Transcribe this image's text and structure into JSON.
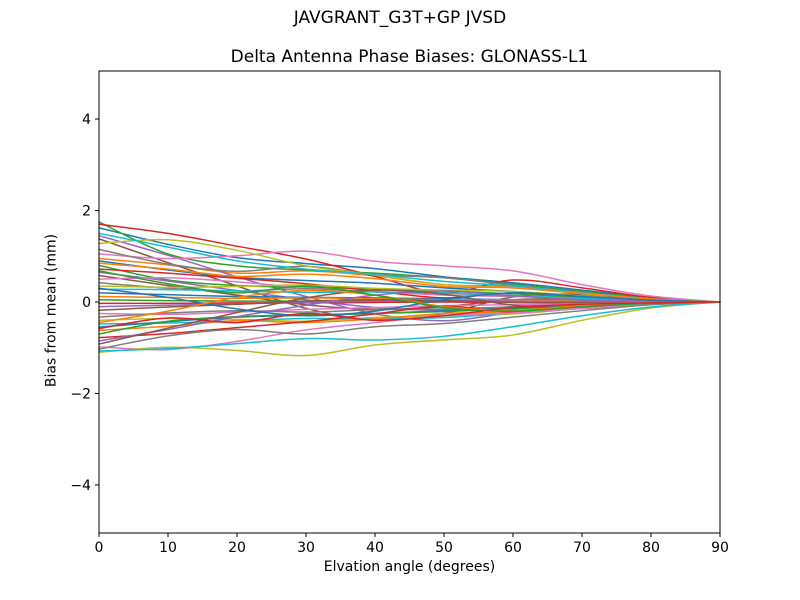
{
  "chart_data": {
    "type": "line",
    "suptitle": "JAVGRANT_G3T+GP JVSD",
    "title": "Delta Antenna Phase Biases: GLONASS-L1",
    "xlabel": "Elvation angle (degrees)",
    "ylabel": "Bias from mean (mm)",
    "xlim": [
      0,
      90
    ],
    "ylim": [
      -5.05,
      5.05
    ],
    "xticks": [
      0,
      10,
      20,
      30,
      40,
      50,
      60,
      70,
      80,
      90
    ],
    "xtick_labels": [
      "0",
      "10",
      "20",
      "30",
      "40",
      "50",
      "60",
      "70",
      "80",
      "90"
    ],
    "yticks": [
      -4,
      -2,
      0,
      2,
      4
    ],
    "ytick_labels": [
      "−4",
      "−2",
      "0",
      "2",
      "4"
    ],
    "grid": false,
    "legend_position": "none",
    "axis_color": "#000000",
    "x": [
      0,
      10,
      20,
      30,
      40,
      50,
      60,
      70,
      80,
      90
    ],
    "series": [
      {
        "color": "#1f77b4",
        "values": [
          1.62,
          1.26,
          0.97,
          0.84,
          0.73,
          0.55,
          0.42,
          0.26,
          0.1,
          0
        ]
      },
      {
        "color": "#ff7f0e",
        "values": [
          0.95,
          0.81,
          0.63,
          0.68,
          0.57,
          0.38,
          0.34,
          0.21,
          0.08,
          0
        ]
      },
      {
        "color": "#2ca02c",
        "values": [
          1.75,
          1.05,
          0.79,
          0.7,
          0.63,
          0.53,
          0.39,
          0.23,
          0.09,
          0
        ]
      },
      {
        "color": "#d62728",
        "values": [
          1.7,
          1.5,
          1.22,
          0.94,
          0.56,
          0.2,
          0.48,
          0.31,
          0.1,
          0
        ]
      },
      {
        "color": "#9467bd",
        "values": [
          1.45,
          1.02,
          0.55,
          0.12,
          -0.26,
          -0.41,
          -0.23,
          -0.09,
          -0.03,
          0
        ]
      },
      {
        "color": "#8c564b",
        "values": [
          1.38,
          0.86,
          0.35,
          -0.14,
          -0.39,
          -0.25,
          0.11,
          0.17,
          0.07,
          0
        ]
      },
      {
        "color": "#e377c2",
        "values": [
          1.05,
          0.95,
          1.01,
          1.11,
          0.89,
          0.79,
          0.68,
          0.38,
          0.13,
          0
        ]
      },
      {
        "color": "#7f7f7f",
        "values": [
          1.15,
          0.83,
          0.67,
          0.78,
          0.6,
          0.53,
          0.37,
          0.21,
          0.07,
          0
        ]
      },
      {
        "color": "#bcbd22",
        "values": [
          1.28,
          1.36,
          1.13,
          0.79,
          0.59,
          0.38,
          0.31,
          0.18,
          0.06,
          0
        ]
      },
      {
        "color": "#17becf",
        "values": [
          1.5,
          1.2,
          0.9,
          0.72,
          0.6,
          0.45,
          0.35,
          0.2,
          0.07,
          0
        ]
      },
      {
        "color": "#1f77b4",
        "values": [
          0.9,
          0.7,
          0.54,
          0.47,
          0.41,
          0.31,
          0.23,
          0.14,
          0.05,
          0
        ]
      },
      {
        "color": "#ff7f0e",
        "values": [
          0.85,
          0.72,
          0.56,
          0.61,
          0.51,
          0.34,
          0.31,
          0.19,
          0.07,
          0
        ]
      },
      {
        "color": "#2ca02c",
        "values": [
          0.8,
          0.48,
          0.36,
          0.32,
          0.29,
          0.24,
          0.18,
          0.1,
          0.04,
          0
        ]
      },
      {
        "color": "#d62728",
        "values": [
          0.72,
          0.63,
          0.52,
          0.4,
          0.24,
          0.09,
          0.2,
          0.13,
          0.04,
          0
        ]
      },
      {
        "color": "#9467bd",
        "values": [
          0.65,
          0.46,
          0.25,
          0.05,
          -0.12,
          -0.18,
          -0.1,
          -0.04,
          -0.01,
          0
        ]
      },
      {
        "color": "#8c564b",
        "values": [
          0.58,
          0.36,
          0.15,
          -0.06,
          -0.16,
          -0.1,
          0.05,
          0.07,
          0.03,
          0
        ]
      },
      {
        "color": "#e377c2",
        "values": [
          0.5,
          0.53,
          0.44,
          0.31,
          0.23,
          0.15,
          0.12,
          0.07,
          0.03,
          0
        ]
      },
      {
        "color": "#7f7f7f",
        "values": [
          0.42,
          0.3,
          0.24,
          0.29,
          0.22,
          0.19,
          0.13,
          0.08,
          0.03,
          0
        ]
      },
      {
        "color": "#bcbd22",
        "values": [
          0.35,
          0.32,
          0.34,
          0.37,
          0.3,
          0.26,
          0.23,
          0.13,
          0.04,
          0
        ]
      },
      {
        "color": "#17becf",
        "values": [
          0.28,
          0.27,
          0.24,
          0.21,
          0.22,
          0.2,
          0.14,
          0.08,
          0.03,
          0
        ]
      },
      {
        "color": "#1f77b4",
        "values": [
          0.2,
          0.16,
          0.12,
          0.1,
          0.09,
          0.07,
          0.05,
          0.03,
          0.01,
          0
        ]
      },
      {
        "color": "#ff7f0e",
        "values": [
          0.12,
          0.1,
          0.08,
          0.09,
          0.07,
          0.05,
          0.04,
          0.03,
          0.01,
          0
        ]
      },
      {
        "color": "#2ca02c",
        "values": [
          0.05,
          0.03,
          0.02,
          0.02,
          0.02,
          0.02,
          0.01,
          0.01,
          0.0,
          0
        ]
      },
      {
        "color": "#d62728",
        "values": [
          -0.03,
          -0.03,
          -0.02,
          -0.02,
          -0.01,
          0.0,
          -0.01,
          -0.01,
          0.0,
          0
        ]
      },
      {
        "color": "#9467bd",
        "values": [
          -0.1,
          -0.07,
          -0.04,
          -0.01,
          0.02,
          0.03,
          0.02,
          0.01,
          0.0,
          0
        ]
      },
      {
        "color": "#8c564b",
        "values": [
          -0.18,
          -0.11,
          -0.05,
          0.02,
          0.05,
          0.03,
          -0.01,
          -0.02,
          -0.01,
          0
        ]
      },
      {
        "color": "#e377c2",
        "values": [
          -0.25,
          -0.27,
          -0.22,
          -0.16,
          -0.12,
          -0.08,
          -0.06,
          -0.04,
          -0.01,
          0
        ]
      },
      {
        "color": "#7f7f7f",
        "values": [
          -0.33,
          -0.24,
          -0.19,
          -0.22,
          -0.17,
          -0.15,
          -0.11,
          -0.06,
          -0.02,
          0
        ]
      },
      {
        "color": "#bcbd22",
        "values": [
          -0.4,
          -0.36,
          -0.38,
          -0.42,
          -0.34,
          -0.3,
          -0.26,
          -0.14,
          -0.05,
          0
        ]
      },
      {
        "color": "#17becf",
        "values": [
          -0.48,
          -0.46,
          -0.41,
          -0.36,
          -0.37,
          -0.34,
          -0.24,
          -0.13,
          -0.05,
          0
        ]
      },
      {
        "color": "#1f77b4",
        "values": [
          -0.55,
          -0.43,
          -0.33,
          -0.29,
          -0.25,
          -0.19,
          -0.14,
          -0.09,
          -0.03,
          0
        ]
      },
      {
        "color": "#ff7f0e",
        "values": [
          -0.62,
          -0.53,
          -0.41,
          -0.45,
          -0.37,
          -0.25,
          -0.22,
          -0.14,
          -0.05,
          0
        ]
      },
      {
        "color": "#2ca02c",
        "values": [
          -0.7,
          -0.42,
          -0.32,
          -0.28,
          -0.25,
          -0.21,
          -0.15,
          -0.09,
          -0.04,
          0
        ]
      },
      {
        "color": "#d62728",
        "values": [
          -0.78,
          -0.69,
          -0.56,
          -0.43,
          -0.26,
          -0.09,
          -0.22,
          -0.14,
          -0.05,
          0
        ]
      },
      {
        "color": "#9467bd",
        "values": [
          -0.85,
          -0.6,
          -0.32,
          -0.07,
          0.15,
          0.24,
          0.14,
          0.05,
          0.02,
          0
        ]
      },
      {
        "color": "#8c564b",
        "values": [
          -0.92,
          -0.57,
          -0.23,
          0.09,
          0.26,
          0.17,
          -0.07,
          -0.11,
          -0.05,
          0
        ]
      },
      {
        "color": "#e377c2",
        "values": [
          -0.98,
          -1.04,
          -0.86,
          -0.61,
          -0.45,
          -0.29,
          -0.24,
          -0.14,
          -0.05,
          0
        ]
      },
      {
        "color": "#7f7f7f",
        "values": [
          -1.03,
          -0.74,
          -0.6,
          -0.7,
          -0.54,
          -0.47,
          -0.33,
          -0.19,
          -0.06,
          0
        ]
      },
      {
        "color": "#bcbd22",
        "values": [
          -1.1,
          -0.99,
          -1.06,
          -1.17,
          -0.94,
          -0.83,
          -0.72,
          -0.4,
          -0.13,
          0
        ]
      },
      {
        "color": "#17becf",
        "values": [
          -1.07,
          -1.02,
          -0.91,
          -0.8,
          -0.83,
          -0.75,
          -0.54,
          -0.3,
          -0.11,
          0
        ]
      },
      {
        "color": "#1f77b4",
        "values": [
          0.3,
          0.1,
          -0.15,
          -0.3,
          -0.2,
          0.05,
          0.2,
          0.12,
          0.04,
          0
        ]
      },
      {
        "color": "#ff7f0e",
        "values": [
          -0.45,
          -0.2,
          0.1,
          0.25,
          0.15,
          -0.1,
          -0.18,
          -0.08,
          -0.02,
          0
        ]
      },
      {
        "color": "#2ca02c",
        "values": [
          0.68,
          0.4,
          0.2,
          0.35,
          0.15,
          -0.12,
          -0.2,
          -0.1,
          -0.03,
          0
        ]
      },
      {
        "color": "#d62728",
        "values": [
          -0.58,
          -0.35,
          -0.45,
          -0.25,
          -0.4,
          -0.3,
          -0.12,
          -0.05,
          -0.02,
          0
        ]
      }
    ]
  }
}
